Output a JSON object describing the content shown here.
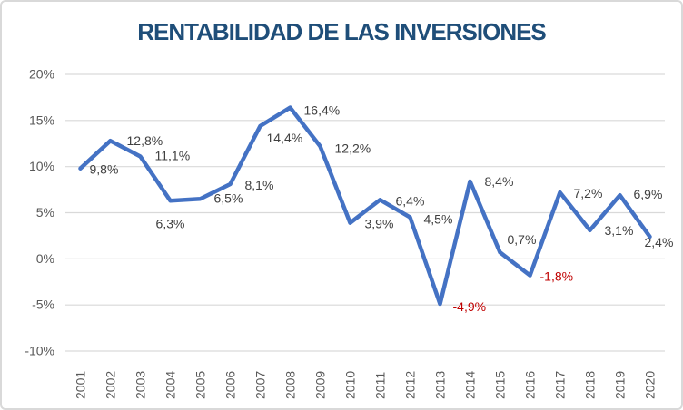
{
  "chart_data": {
    "type": "line",
    "title": "RENTABILIDAD DE LAS INVERSIONES",
    "xlabel": "",
    "ylabel": "",
    "categories": [
      "2001",
      "2002",
      "2003",
      "2004",
      "2005",
      "2006",
      "2007",
      "2008",
      "2009",
      "2010",
      "2011",
      "2012",
      "2013",
      "2014",
      "2015",
      "2016",
      "2017",
      "2018",
      "2019",
      "2020"
    ],
    "values": [
      9.8,
      12.8,
      11.1,
      6.3,
      6.5,
      8.1,
      14.4,
      16.4,
      12.2,
      3.9,
      6.4,
      4.5,
      -4.9,
      8.4,
      0.7,
      -1.8,
      7.2,
      3.1,
      6.9,
      2.4
    ],
    "point_labels": [
      "9,8%",
      "12,8%",
      "11,1%",
      "6,3%",
      "6,5%",
      "8,1%",
      "14,4%",
      "16,4%",
      "12,2%",
      "3,9%",
      "6,4%",
      "4,5%",
      "-4,9%",
      "8,4%",
      "0,7%",
      "-1,8%",
      "7,2%",
      "3,1%",
      "6,9%",
      "2,4%"
    ],
    "label_offsets": [
      [
        10,
        6,
        "start"
      ],
      [
        18,
        5,
        "start"
      ],
      [
        16,
        4,
        "start"
      ],
      [
        0,
        30,
        "middle"
      ],
      [
        15,
        4,
        "start"
      ],
      [
        16,
        6,
        "start"
      ],
      [
        7,
        18,
        "start"
      ],
      [
        15,
        8,
        "start"
      ],
      [
        16,
        7,
        "start"
      ],
      [
        16,
        6,
        "start"
      ],
      [
        17,
        6,
        "start"
      ],
      [
        15,
        7,
        "start"
      ],
      [
        14,
        8,
        "start"
      ],
      [
        16,
        5,
        "start"
      ],
      [
        8,
        -9,
        "start"
      ],
      [
        11,
        6,
        "start"
      ],
      [
        15,
        6,
        "start"
      ],
      [
        16,
        5,
        "start"
      ],
      [
        15,
        4,
        "start"
      ],
      [
        -6,
        11,
        "start"
      ]
    ],
    "y_ticks": {
      "values": [
        20,
        15,
        10,
        5,
        0,
        -5,
        -10
      ],
      "labels": [
        "20%",
        "15%",
        "10%",
        "5%",
        "0%",
        "-5%",
        "-10%"
      ]
    },
    "ylim": [
      -10,
      20
    ],
    "grid": true,
    "legend": "none",
    "colors": {
      "line": "#4472C4",
      "title": "#1F4E79",
      "label": "#404040",
      "negative_label": "#C00000",
      "axis_text": "#595959",
      "gridline": "#D9D9D9",
      "frame_border": "#D9D9D9",
      "background": "#FFFFFF"
    }
  }
}
